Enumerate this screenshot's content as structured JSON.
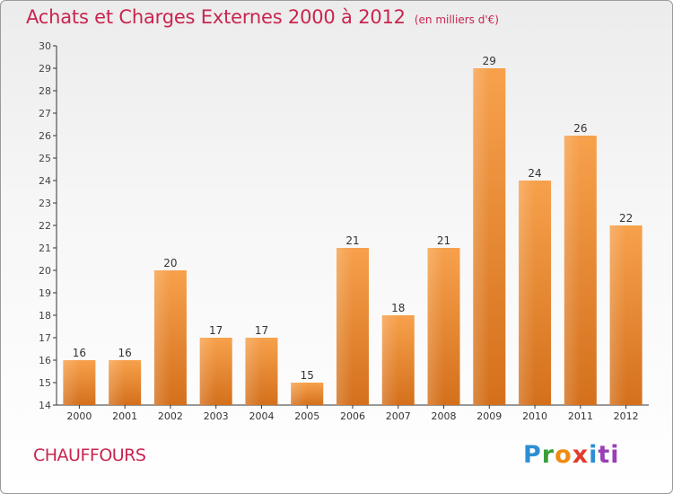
{
  "header": {
    "title": "Achats et Charges Externes 2000 à 2012",
    "unit": "(en milliers d'€)"
  },
  "footer": {
    "commune": "CHAUFFOURS",
    "logo": "Proxiti"
  },
  "colors": {
    "title": "#c8254e",
    "bar_top": "#f7a14c",
    "bar_bottom": "#d4701c",
    "axis": "#333333"
  },
  "chart_data": {
    "type": "bar",
    "title": "Achats et Charges Externes 2000 à 2012",
    "subtitle": "(en milliers d'€)",
    "xlabel": "",
    "ylabel": "",
    "categories": [
      "2000",
      "2001",
      "2002",
      "2003",
      "2004",
      "2005",
      "2006",
      "2007",
      "2008",
      "2009",
      "2010",
      "2011",
      "2012"
    ],
    "values": [
      16,
      16,
      20,
      17,
      17,
      15,
      21,
      18,
      21,
      29,
      24,
      26,
      22
    ],
    "ylim": [
      14,
      30
    ],
    "yticks": [
      14,
      15,
      16,
      17,
      18,
      19,
      20,
      21,
      22,
      23,
      24,
      25,
      26,
      27,
      28,
      29,
      30
    ],
    "grid": false,
    "legend": "none"
  }
}
